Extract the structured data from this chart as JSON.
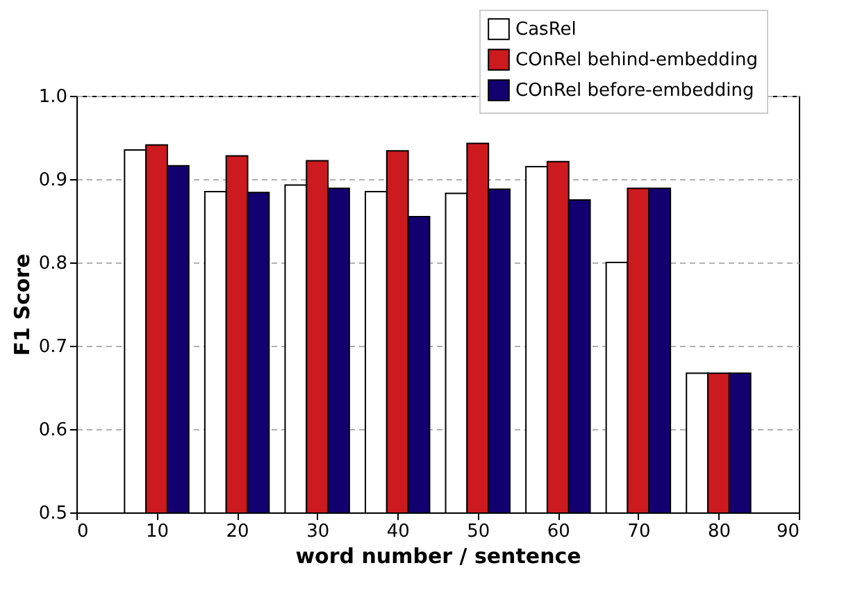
{
  "chart_data": {
    "type": "bar",
    "xlabel": "word number / sentence",
    "ylabel": "F1 Score",
    "x": [
      10,
      20,
      30,
      40,
      50,
      60,
      70,
      80
    ],
    "series": [
      {
        "name": "CasRel",
        "color": "#ffffff",
        "values": [
          0.935,
          0.885,
          0.893,
          0.885,
          0.883,
          0.915,
          0.8,
          0.667
        ]
      },
      {
        "name": "COnRel behind-embedding",
        "color": "#cc1a1e",
        "values": [
          0.941,
          0.928,
          0.922,
          0.934,
          0.943,
          0.921,
          0.889,
          0.667
        ]
      },
      {
        "name": "COnRel before-embedding",
        "color": "#130070",
        "values": [
          0.916,
          0.884,
          0.889,
          0.855,
          0.888,
          0.875,
          0.889,
          0.667
        ]
      }
    ],
    "xlim": [
      0,
      90
    ],
    "xticks": [
      0,
      10,
      20,
      30,
      40,
      50,
      60,
      70,
      80,
      90
    ],
    "ylim": [
      0.5,
      1.0
    ],
    "yticks": [
      0.5,
      0.6,
      0.7,
      0.8,
      0.9,
      {
        "value": 1.0,
        "label": "1.0"
      }
    ],
    "grid": "y",
    "legend": "top right"
  }
}
